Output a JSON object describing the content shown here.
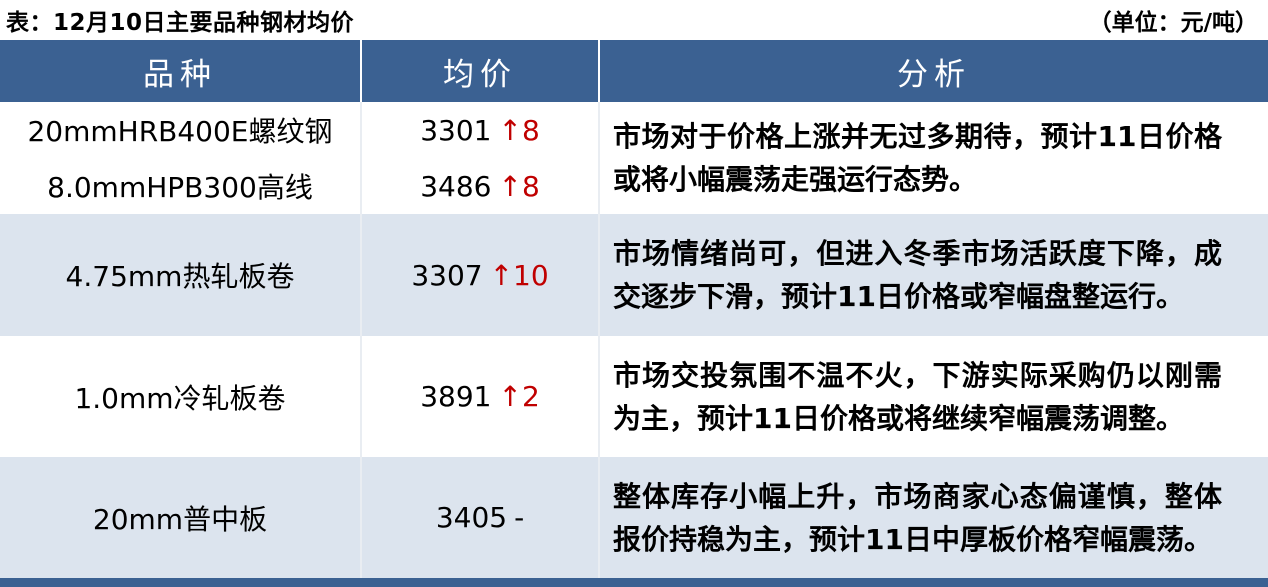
{
  "title": "表：12月10日主要品种钢材均价",
  "unit_note": "（单位：元/吨）",
  "colors": {
    "header_bg": "#3B6192",
    "alt_row_bg": "#DCE4EE",
    "price_up_red": "#C00000",
    "header_text": "#FFFFFF",
    "body_text": "#000000"
  },
  "table": {
    "headers": [
      "品种",
      "均价",
      "分析"
    ],
    "rows": [
      {
        "items": [
          {
            "name": "20mmHRB400E螺纹钢",
            "price": "3301",
            "change": "↑8"
          },
          {
            "name": "8.0mmHPB300高线",
            "price": "3486",
            "change": "↑8"
          }
        ],
        "analysis": "市场对于价格上涨并无过多期待，预计11日价格或将小幅震荡走强运行态势。"
      },
      {
        "items": [
          {
            "name": "4.75mm热轧板卷",
            "price": "3307",
            "change": "↑10"
          }
        ],
        "analysis": "市场情绪尚可，但进入冬季市场活跃度下降，成交逐步下滑，预计11日价格或窄幅盘整运行。"
      },
      {
        "items": [
          {
            "name": "1.0mm冷轧板卷",
            "price": "3891",
            "change": "↑2"
          }
        ],
        "analysis": "市场交投氛围不温不火，下游实际采购仍以刚需为主，预计11日价格或将继续窄幅震荡调整。"
      },
      {
        "items": [
          {
            "name": "20mm普中板",
            "price": "3405",
            "change": "-"
          }
        ],
        "analysis": "整体库存小幅上升，市场商家心态偏谨慎，整体报价持稳为主，预计11日中厚板价格窄幅震荡。"
      }
    ]
  }
}
